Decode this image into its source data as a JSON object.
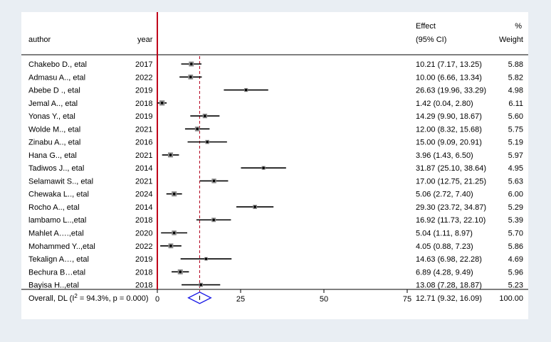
{
  "chart_data": {
    "type": "forest",
    "columns": {
      "author": "author",
      "year": "year",
      "effect_line1": "Effect",
      "effect_line2": "(95% CI)",
      "weight_line1": "%",
      "weight_line2": "Weight"
    },
    "studies": [
      {
        "author": "Chakebo D., etal",
        "year": "2017",
        "effect": 10.21,
        "lower": 7.17,
        "upper": 13.25,
        "ci_text": "10.21 (7.17, 13.25)",
        "weight": "5.88"
      },
      {
        "author": "Admasu A.., etal",
        "year": "2022",
        "effect": 10.0,
        "lower": 6.66,
        "upper": 13.34,
        "ci_text": "10.00 (6.66, 13.34)",
        "weight": "5.82"
      },
      {
        "author": "Abebe D ., etal",
        "year": "2019",
        "effect": 26.63,
        "lower": 19.96,
        "upper": 33.29,
        "ci_text": "26.63 (19.96, 33.29)",
        "weight": "4.98"
      },
      {
        "author": "Jemal A.., etal",
        "year": "2018",
        "effect": 1.42,
        "lower": 0.04,
        "upper": 2.8,
        "ci_text": "1.42 (0.04, 2.80)",
        "weight": "6.11"
      },
      {
        "author": "Yonas Y., etal",
        "year": "2019",
        "effect": 14.29,
        "lower": 9.9,
        "upper": 18.67,
        "ci_text": "14.29 (9.90, 18.67)",
        "weight": "5.60"
      },
      {
        "author": "Wolde M.., etal",
        "year": "2021",
        "effect": 12.0,
        "lower": 8.32,
        "upper": 15.68,
        "ci_text": "12.00 (8.32, 15.68)",
        "weight": "5.75"
      },
      {
        "author": "Zinabu A.., etal",
        "year": "2016",
        "effect": 15.0,
        "lower": 9.09,
        "upper": 20.91,
        "ci_text": "15.00 (9.09, 20.91)",
        "weight": "5.19"
      },
      {
        "author": "Hana G.., etal",
        "year": "2021",
        "effect": 3.96,
        "lower": 1.43,
        "upper": 6.5,
        "ci_text": "3.96 (1.43, 6.50)",
        "weight": "5.97"
      },
      {
        "author": "Tadiwos J.., etal",
        "year": "2014",
        "effect": 31.87,
        "lower": 25.1,
        "upper": 38.64,
        "ci_text": "31.87 (25.10, 38.64)",
        "weight": "4.95"
      },
      {
        "author": "Selamawit S.., etal",
        "year": "2021",
        "effect": 17.0,
        "lower": 12.75,
        "upper": 21.25,
        "ci_text": "17.00 (12.75, 21.25)",
        "weight": "5.63"
      },
      {
        "author": "Chewaka L.., etal",
        "year": "2024",
        "effect": 5.06,
        "lower": 2.72,
        "upper": 7.4,
        "ci_text": "5.06 (2.72, 7.40)",
        "weight": "6.00"
      },
      {
        "author": "Rocho A.., etal",
        "year": "2014",
        "effect": 29.3,
        "lower": 23.72,
        "upper": 34.87,
        "ci_text": "29.30 (23.72, 34.87)",
        "weight": "5.29"
      },
      {
        "author": "lambamo L..,etal",
        "year": "2018",
        "effect": 16.92,
        "lower": 11.73,
        "upper": 22.1,
        "ci_text": "16.92 (11.73, 22.10)",
        "weight": "5.39"
      },
      {
        "author": "Mahlet A….,etal",
        "year": "2020",
        "effect": 5.04,
        "lower": 1.11,
        "upper": 8.97,
        "ci_text": "5.04 (1.11, 8.97)",
        "weight": "5.70"
      },
      {
        "author": "Mohammed Y..,etal",
        "year": "2022",
        "effect": 4.05,
        "lower": 0.88,
        "upper": 7.23,
        "ci_text": "4.05 (0.88, 7.23)",
        "weight": "5.86"
      },
      {
        "author": "Tekalign A…, etal",
        "year": "2019",
        "effect": 14.63,
        "lower": 6.98,
        "upper": 22.28,
        "ci_text": "14.63 (6.98, 22.28)",
        "weight": "4.69"
      },
      {
        "author": "Bechura B…etal",
        "year": "2018",
        "effect": 6.89,
        "lower": 4.28,
        "upper": 9.49,
        "ci_text": "6.89 (4.28, 9.49)",
        "weight": "5.96"
      },
      {
        "author": "Bayisa H..,etal",
        "year": "2018",
        "effect": 13.08,
        "lower": 7.28,
        "upper": 18.87,
        "ci_text": "13.08 (7.28, 18.87)",
        "weight": "5.23"
      }
    ],
    "overall": {
      "label_prefix": "Overall, DL (I",
      "label_sup": "2",
      "label_suffix": " = 94.3%, p = 0.000)",
      "effect": 12.71,
      "lower": 9.32,
      "upper": 16.09,
      "ci_text": "12.71 (9.32, 16.09)",
      "weight": "100.00"
    },
    "x_ticks": [
      0,
      25,
      50,
      75
    ],
    "x_tick_labels": [
      "0",
      "25",
      "50",
      "75"
    ],
    "xlim": [
      0,
      75
    ],
    "null_line": 0,
    "colors": {
      "null_line": "#c0001a",
      "overall_line": "#b4001e",
      "diamond": "#1a1ae6",
      "background": "#e9eef3"
    }
  }
}
